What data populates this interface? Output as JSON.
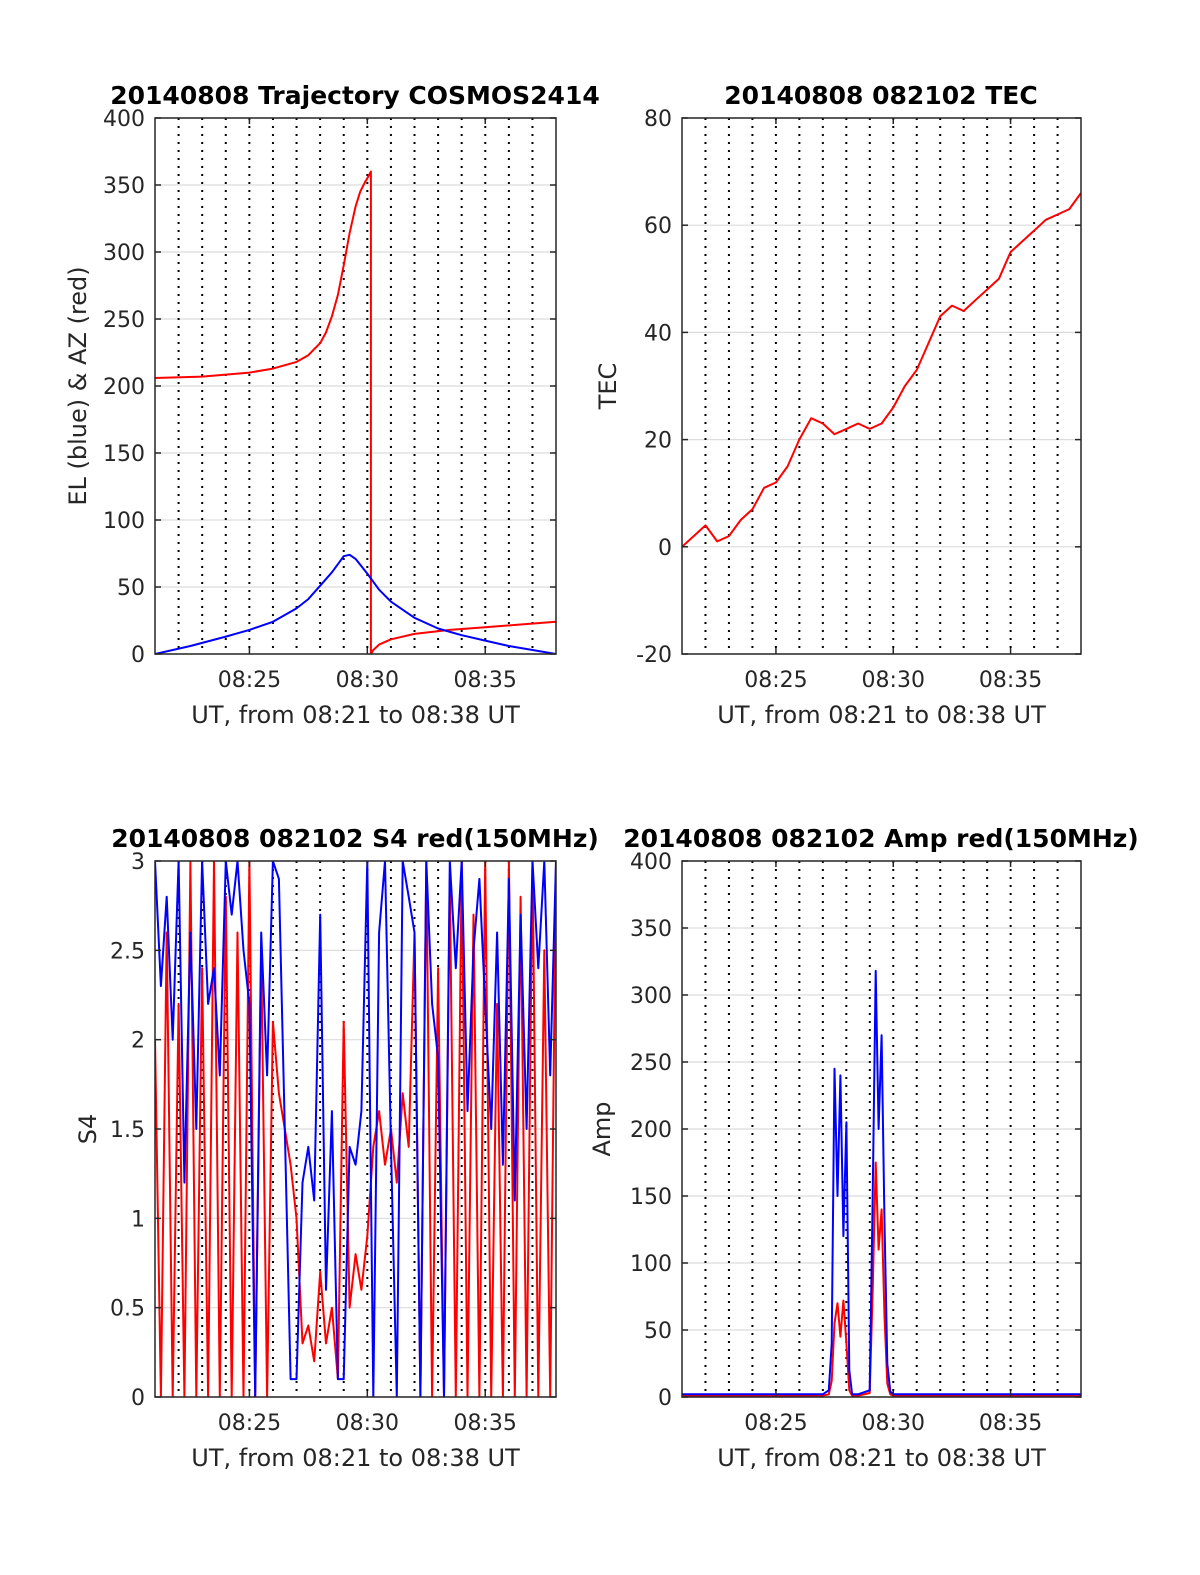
{
  "figure": {
    "background": "#ffffff",
    "axis_color": "#262626",
    "grid_h_color": "#dcdcdc",
    "grid_v_color": "#000000"
  },
  "chart_data": [
    {
      "id": "trajectory",
      "type": "line",
      "title": "20140808 Trajectory COSMOS2414",
      "xlabel": "UT, from 08:21 to 08:38 UT",
      "ylabel": "EL (blue) & AZ (red)",
      "xlim": [
        8.35,
        8.6333
      ],
      "ylim": [
        0,
        400
      ],
      "xticks": [
        8.4167,
        8.5,
        8.5833
      ],
      "xtick_labels": [
        "08:25",
        "08:30",
        "08:35"
      ],
      "yticks": [
        0,
        50,
        100,
        150,
        200,
        250,
        300,
        350,
        400
      ],
      "ytick_labels": [
        "0",
        "50",
        "100",
        "150",
        "200",
        "250",
        "300",
        "350",
        "400"
      ],
      "grid": true,
      "series": [
        {
          "color": "#ff0000",
          "x": [
            8.35,
            8.3833,
            8.4167,
            8.4333,
            8.45,
            8.4583,
            8.4667,
            8.4708,
            8.475,
            8.4792,
            8.4833,
            8.4875,
            8.4917,
            8.495,
            8.4983,
            8.5,
            8.5025,
            8.5025,
            8.5042,
            8.5083,
            8.5167,
            8.5333,
            8.5583,
            8.5833,
            8.6083,
            8.6333
          ],
          "y": [
            206,
            207,
            210,
            213,
            218,
            223,
            232,
            240,
            252,
            268,
            290,
            314,
            334,
            345,
            352,
            355,
            360,
            0,
            3,
            7,
            11,
            15,
            18,
            20,
            22,
            24
          ]
        },
        {
          "color": "#0000ff",
          "x": [
            8.35,
            8.375,
            8.4,
            8.4167,
            8.4333,
            8.45,
            8.4583,
            8.4667,
            8.475,
            8.4792,
            8.4833,
            8.4875,
            8.4917,
            8.5,
            8.5083,
            8.5167,
            8.5333,
            8.55,
            8.5667,
            8.5833,
            8.6,
            8.6167,
            8.6333
          ],
          "y": [
            0,
            6,
            13,
            18,
            24,
            34,
            41,
            51,
            61,
            67,
            73,
            74,
            71,
            60,
            48,
            39,
            27,
            19,
            14,
            10,
            6,
            3,
            0
          ]
        }
      ]
    },
    {
      "id": "tec",
      "type": "line",
      "title": "20140808 082102 TEC",
      "xlabel": "UT, from 08:21 to 08:38 UT",
      "ylabel": "TEC",
      "xlim": [
        8.35,
        8.6333
      ],
      "ylim": [
        -20,
        80
      ],
      "xticks": [
        8.4167,
        8.5,
        8.5833
      ],
      "xtick_labels": [
        "08:25",
        "08:30",
        "08:35"
      ],
      "yticks": [
        -20,
        0,
        20,
        40,
        60,
        80
      ],
      "ytick_labels": [
        "-20",
        "0",
        "20",
        "40",
        "60",
        "80"
      ],
      "grid": true,
      "series": [
        {
          "color": "#ff0000",
          "x": [
            8.35,
            8.3583,
            8.3667,
            8.375,
            8.3833,
            8.3917,
            8.4,
            8.4083,
            8.4167,
            8.425,
            8.4333,
            8.4417,
            8.45,
            8.4583,
            8.4667,
            8.475,
            8.4833,
            8.4917,
            8.5,
            8.5083,
            8.5167,
            8.525,
            8.5333,
            8.5417,
            8.55,
            8.5583,
            8.5667,
            8.575,
            8.5833,
            8.5917,
            8.6,
            8.6083,
            8.6167,
            8.625,
            8.6333
          ],
          "y": [
            0,
            2,
            4,
            1,
            2,
            5,
            7,
            11,
            12,
            15,
            20,
            24,
            23,
            21,
            22,
            23,
            22,
            23,
            26,
            30,
            33,
            38,
            43,
            45,
            44,
            46,
            48,
            50,
            55,
            57,
            59,
            61,
            62,
            63,
            66
          ]
        }
      ]
    },
    {
      "id": "s4",
      "type": "line",
      "title": "20140808 082102 S4 red(150MHz)",
      "xlabel": "UT, from 08:21 to 08:38 UT",
      "ylabel": "S4",
      "xlim": [
        8.35,
        8.6333
      ],
      "ylim": [
        0,
        3
      ],
      "xticks": [
        8.4167,
        8.5,
        8.5833
      ],
      "xtick_labels": [
        "08:25",
        "08:30",
        "08:35"
      ],
      "yticks": [
        0,
        0.5,
        1,
        1.5,
        2,
        2.5,
        3
      ],
      "ytick_labels": [
        "0",
        "0.5",
        "1",
        "1.5",
        "2",
        "2.5",
        "3"
      ],
      "grid": true,
      "series": [
        {
          "color": "#ff0000",
          "x": [
            8.35,
            8.3542,
            8.3583,
            8.3625,
            8.3667,
            8.3708,
            8.375,
            8.3792,
            8.3833,
            8.3875,
            8.3917,
            8.3958,
            8.4,
            8.4042,
            8.4083,
            8.4125,
            8.4167,
            8.4208,
            8.425,
            8.4292,
            8.4333,
            8.4375,
            8.4417,
            8.4458,
            8.45,
            8.4542,
            8.4583,
            8.4625,
            8.4667,
            8.4708,
            8.475,
            8.4792,
            8.4833,
            8.4875,
            8.4917,
            8.4958,
            8.5,
            8.5042,
            8.5083,
            8.5125,
            8.5167,
            8.5208,
            8.525,
            8.5292,
            8.5333,
            8.5375,
            8.5417,
            8.5458,
            8.55,
            8.5542,
            8.5583,
            8.5625,
            8.5667,
            8.5708,
            8.575,
            8.5792,
            8.5833,
            8.5875,
            8.5917,
            8.5958,
            8.6,
            8.6042,
            8.6083,
            8.6125,
            8.6167,
            8.6208,
            8.625,
            8.6292,
            8.6333
          ],
          "y": [
            2.0,
            0.0,
            2.6,
            0.0,
            2.2,
            0.0,
            3.0,
            0.0,
            2.4,
            0.0,
            3.0,
            0.0,
            2.8,
            0.0,
            2.6,
            0.0,
            3.0,
            0.0,
            2.5,
            0.0,
            2.1,
            1.7,
            1.5,
            1.3,
            1.0,
            0.3,
            0.4,
            0.2,
            0.7,
            0.3,
            0.5,
            0.1,
            2.1,
            0.5,
            0.8,
            0.6,
            0.9,
            1.4,
            1.6,
            1.3,
            1.5,
            1.2,
            1.7,
            1.4,
            2.6,
            0.0,
            3.0,
            0.0,
            2.4,
            0.0,
            2.9,
            0.0,
            3.0,
            0.0,
            2.7,
            0.0,
            3.0,
            0.0,
            2.2,
            0.0,
            3.0,
            0.0,
            2.8,
            0.0,
            3.0,
            0.0,
            2.5,
            0.0,
            3.0
          ]
        },
        {
          "color": "#0000ff",
          "x": [
            8.35,
            8.3542,
            8.3583,
            8.3625,
            8.3667,
            8.3708,
            8.375,
            8.3792,
            8.3833,
            8.3875,
            8.3917,
            8.3958,
            8.4,
            8.4042,
            8.4083,
            8.4125,
            8.4167,
            8.4208,
            8.425,
            8.4292,
            8.4333,
            8.4375,
            8.4417,
            8.4458,
            8.45,
            8.4542,
            8.4583,
            8.4625,
            8.4667,
            8.4708,
            8.475,
            8.4792,
            8.4833,
            8.4875,
            8.4917,
            8.4958,
            8.5,
            8.5042,
            8.5083,
            8.5125,
            8.5167,
            8.5208,
            8.525,
            8.5292,
            8.5333,
            8.5375,
            8.5417,
            8.5458,
            8.55,
            8.5542,
            8.5583,
            8.5625,
            8.5667,
            8.5708,
            8.575,
            8.5792,
            8.5833,
            8.5875,
            8.5917,
            8.5958,
            8.6,
            8.6042,
            8.6083,
            8.6125,
            8.6167,
            8.6208,
            8.625,
            8.6292,
            8.6333
          ],
          "y": [
            3.0,
            2.3,
            2.8,
            2.0,
            3.0,
            1.2,
            2.6,
            1.5,
            3.0,
            2.2,
            2.4,
            1.8,
            3.0,
            2.7,
            3.0,
            2.5,
            2.2,
            0.0,
            2.6,
            1.8,
            3.0,
            2.9,
            1.5,
            0.1,
            0.1,
            1.2,
            1.4,
            1.1,
            2.7,
            0.6,
            1.6,
            0.1,
            0.1,
            1.4,
            1.3,
            1.6,
            3.0,
            0.0,
            2.6,
            3.0,
            1.4,
            0.0,
            3.0,
            2.8,
            2.6,
            0.0,
            3.0,
            2.2,
            1.9,
            0.0,
            3.0,
            2.4,
            3.0,
            1.6,
            2.5,
            2.9,
            2.2,
            1.5,
            2.6,
            1.3,
            2.9,
            1.1,
            2.7,
            1.5,
            3.0,
            2.4,
            3.0,
            1.8,
            3.0
          ]
        }
      ]
    },
    {
      "id": "amp",
      "type": "line",
      "title": "20140808 082102 Amp red(150MHz)",
      "xlabel": "UT, from 08:21 to 08:38 UT",
      "ylabel": "Amp",
      "xlim": [
        8.35,
        8.6333
      ],
      "ylim": [
        0,
        400
      ],
      "xticks": [
        8.4167,
        8.5,
        8.5833
      ],
      "xtick_labels": [
        "08:25",
        "08:30",
        "08:35"
      ],
      "yticks": [
        0,
        50,
        100,
        150,
        200,
        250,
        300,
        350,
        400
      ],
      "ytick_labels": [
        "0",
        "50",
        "100",
        "150",
        "200",
        "250",
        "300",
        "350",
        "400"
      ],
      "grid": true,
      "series": [
        {
          "color": "#ff0000",
          "x": [
            8.35,
            8.45,
            8.4542,
            8.4563,
            8.4583,
            8.4604,
            8.4625,
            8.4646,
            8.4667,
            8.4688,
            8.4708,
            8.475,
            8.4833,
            8.4854,
            8.4875,
            8.4896,
            8.4917,
            8.4938,
            8.4958,
            8.4979,
            8.5,
            8.6333
          ],
          "y": [
            1,
            1,
            2,
            12,
            55,
            70,
            45,
            72,
            40,
            5,
            1,
            1,
            3,
            80,
            175,
            110,
            140,
            60,
            10,
            2,
            1,
            1
          ]
        },
        {
          "color": "#0000ff",
          "x": [
            8.35,
            8.45,
            8.4542,
            8.4563,
            8.4583,
            8.4604,
            8.4625,
            8.4646,
            8.4667,
            8.4688,
            8.4708,
            8.475,
            8.4833,
            8.4854,
            8.4875,
            8.4896,
            8.4917,
            8.4938,
            8.4958,
            8.4979,
            8.5,
            8.6333
          ],
          "y": [
            2,
            2,
            5,
            40,
            245,
            150,
            240,
            120,
            205,
            20,
            2,
            2,
            5,
            150,
            318,
            200,
            270,
            130,
            25,
            4,
            2,
            2
          ]
        }
      ]
    }
  ]
}
